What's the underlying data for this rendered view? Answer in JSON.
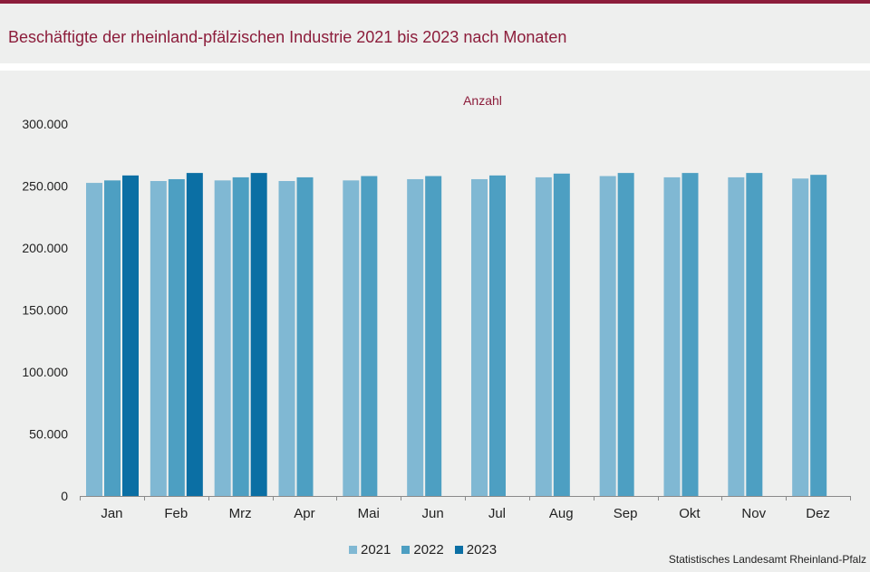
{
  "header": {
    "title": "Beschäftigte der rheinland-pfälzischen Industrie 2021 bis 2023 nach Monaten"
  },
  "chart_data": {
    "type": "bar",
    "title": "Beschäftigte der rheinland-pfälzischen Industrie 2021 bis 2023 nach Monaten",
    "ylabel": "Anzahl",
    "xlabel": "",
    "ylim": [
      0,
      300000
    ],
    "yticks": [
      0,
      50000,
      100000,
      150000,
      200000,
      250000,
      300000
    ],
    "ytick_labels": [
      "0",
      "50.000",
      "100.000",
      "150.000",
      "200.000",
      "250.000",
      "300.000"
    ],
    "categories": [
      "Jan",
      "Feb",
      "Mrz",
      "Apr",
      "Mai",
      "Jun",
      "Jul",
      "Aug",
      "Sep",
      "Okt",
      "Nov",
      "Dez"
    ],
    "series": [
      {
        "name": "2021",
        "color": "#80b8d3",
        "values": [
          252500,
          254000,
          254500,
          254000,
          254500,
          255500,
          255500,
          257000,
          258000,
          257000,
          257000,
          256000
        ]
      },
      {
        "name": "2022",
        "color": "#4d9fc2",
        "values": [
          254500,
          255500,
          257000,
          257000,
          258000,
          258000,
          258500,
          260000,
          260500,
          260500,
          260500,
          259000
        ]
      },
      {
        "name": "2023",
        "color": "#0b6fa4",
        "values": [
          258500,
          260500,
          260500,
          null,
          null,
          null,
          null,
          null,
          null,
          null,
          null,
          null
        ]
      }
    ],
    "legend_position": "bottom",
    "grid": false
  },
  "footer": {
    "source": "Statistisches Landesamt Rheinland-Pfalz"
  }
}
